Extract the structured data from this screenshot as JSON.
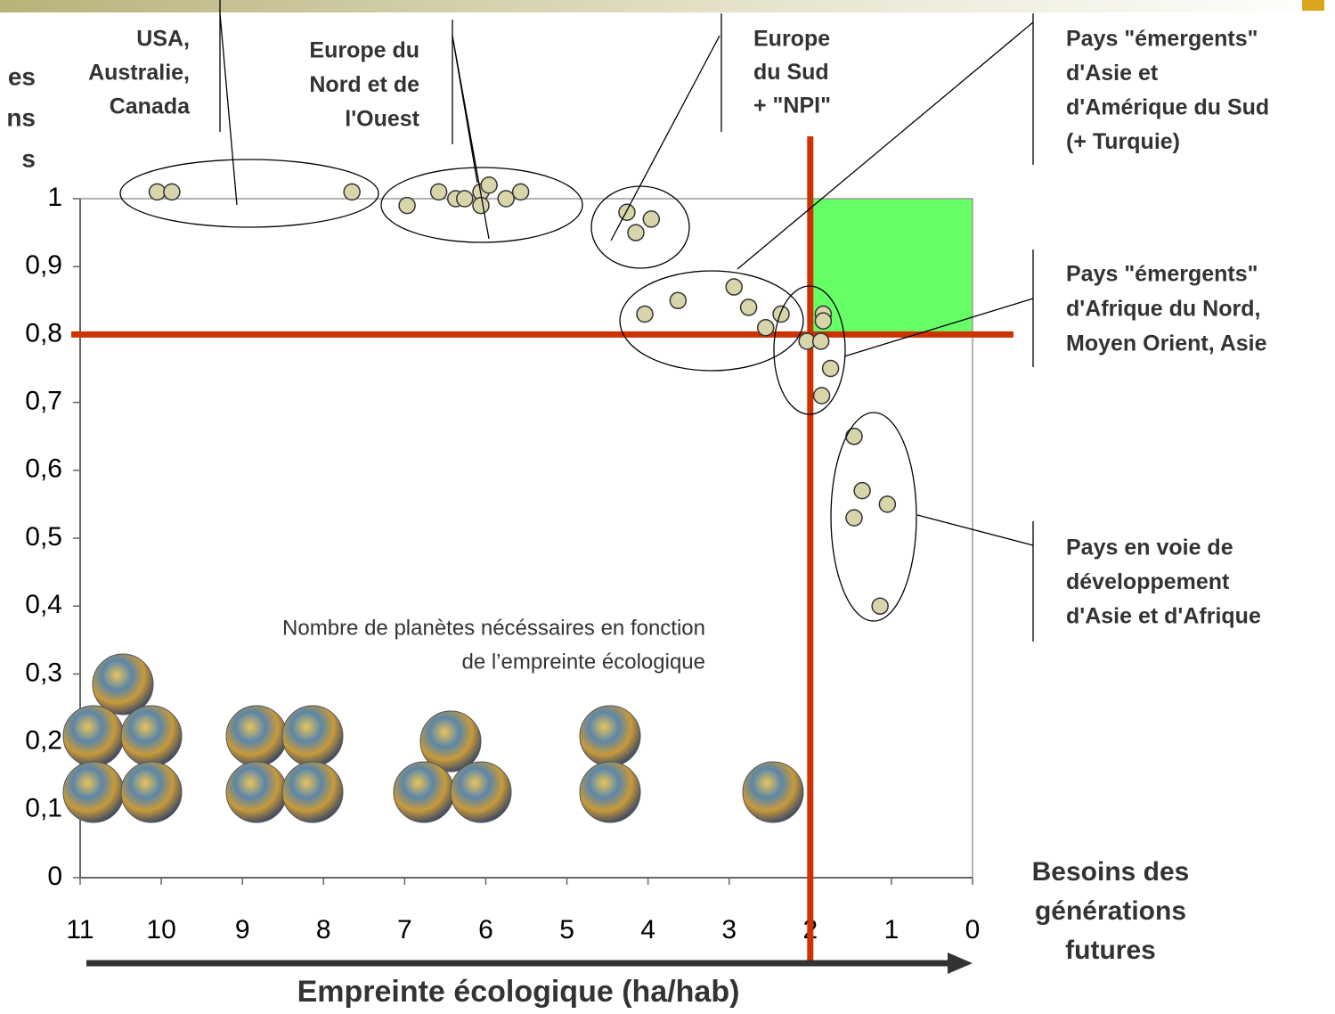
{
  "chart_data": {
    "type": "scatter",
    "x_label": "Empreinte écologique (ha/hab)",
    "y_label_fragments": [
      "es",
      "ns",
      "s"
    ],
    "right_axis_label": [
      "Besoins des",
      "générations",
      "futures"
    ],
    "planets_caption": [
      "Nombre de planètes nécéssaires en fonction",
      "de l’empreinte écologique"
    ],
    "groups": [
      [
        "USA,",
        "Australie,",
        "Canada"
      ],
      [
        "Europe du",
        "Nord et de",
        "l'Ouest"
      ],
      [
        "Europe",
        "du Sud",
        "+ \"NPI\""
      ],
      [
        "Pays \"émergents\"",
        "d'Asie et",
        "d'Amérique du Sud",
        "(+ Turquie)"
      ],
      [
        "Pays \"émergents\"",
        "d'Afrique du Nord,",
        "Moyen Orient, Asie"
      ],
      [
        "Pays en voie de",
        "développement",
        "d'Asie et d'Afrique"
      ]
    ],
    "x": [
      10.05,
      9.87,
      7.65,
      6.97,
      6.58,
      6.37,
      6.26,
      6.06,
      6.06,
      5.96,
      5.75,
      5.57,
      4.26,
      3.96,
      4.15,
      4.04,
      3.63,
      2.94,
      2.76,
      2.55,
      2.36,
      1.84,
      1.84,
      2.04,
      1.87,
      1.75,
      1.86,
      1.46,
      1.36,
      1.46,
      1.05,
      1.14
    ],
    "values": [
      1.01,
      1.01,
      1.01,
      0.99,
      1.01,
      1.0,
      1.0,
      1.01,
      0.99,
      1.02,
      1.0,
      1.01,
      0.98,
      0.97,
      0.95,
      0.83,
      0.85,
      0.87,
      0.84,
      0.81,
      0.83,
      0.83,
      0.82,
      0.79,
      0.79,
      0.75,
      0.71,
      0.65,
      0.57,
      0.53,
      0.55,
      0.4
    ],
    "color": "#d9d5ab",
    "xlim": [
      11,
      0
    ],
    "xticks": [
      11,
      10,
      9,
      8,
      7,
      6,
      5,
      4,
      3,
      2,
      1,
      0
    ],
    "ylim": [
      0,
      1
    ],
    "yticks": [
      0,
      {
        "value": 0.1,
        "label": "0,1"
      },
      {
        "value": 0.2,
        "label": "0,2"
      },
      {
        "value": 0.3,
        "label": "0,3"
      },
      {
        "value": 0.4,
        "label": "0,4"
      },
      {
        "value": 0.5,
        "label": "0,5"
      },
      {
        "value": 0.6,
        "label": "0,6"
      },
      {
        "value": 0.7,
        "label": "0,7"
      },
      {
        "value": 0.8,
        "label": "0,8"
      },
      {
        "value": 0.9,
        "label": "0,9"
      },
      1
    ],
    "reference_lines": {
      "x": 2,
      "y": 0.8,
      "color": "#cc3300"
    },
    "highlight_region": {
      "x": [
        2,
        0
      ],
      "y": [
        0.8,
        1
      ],
      "color": "#66ff66"
    }
  }
}
